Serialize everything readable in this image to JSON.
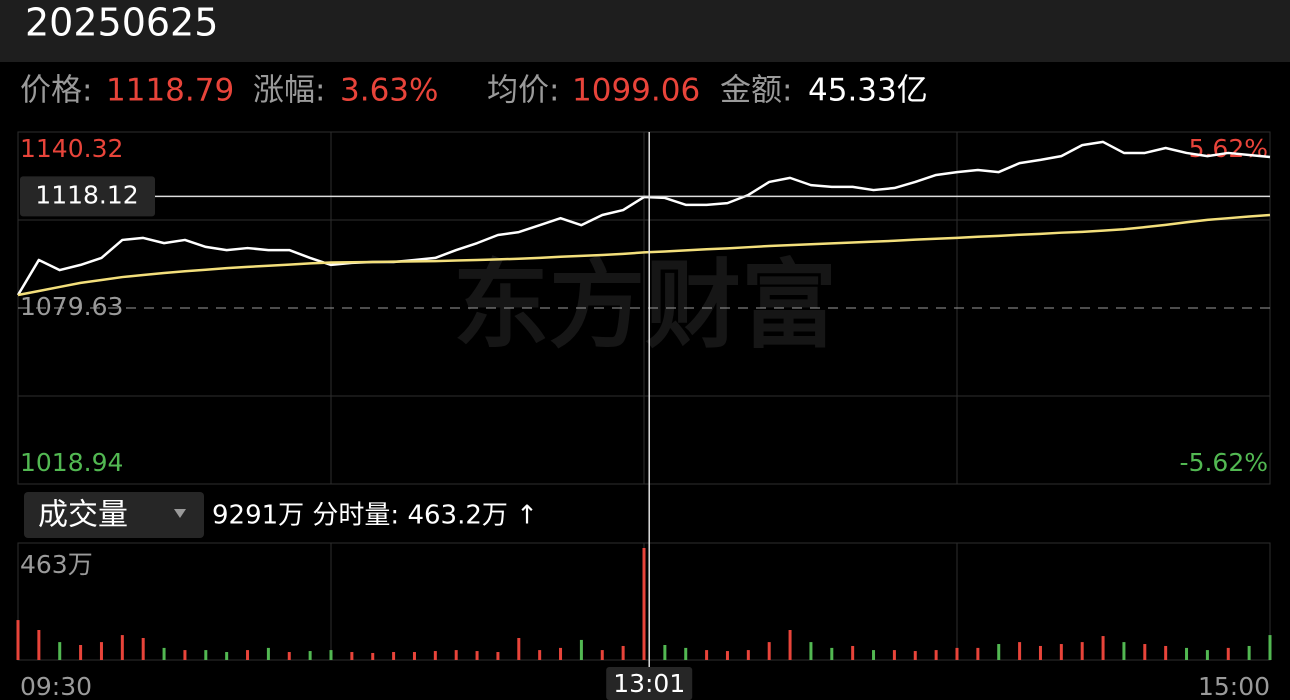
{
  "chart_data": {
    "type": "line",
    "title": "20250625",
    "info": [
      {
        "label": "价格:",
        "value": "1118.79"
      },
      {
        "label": "涨幅:",
        "value": "3.63%"
      },
      {
        "label": "均价:",
        "value": "1099.06"
      },
      {
        "label": "金额:",
        "value": "45.33亿"
      }
    ],
    "watermark": "东方财富",
    "x": [
      0,
      4,
      8,
      12,
      16,
      20,
      24,
      28,
      32,
      36,
      40,
      44,
      48,
      52,
      56,
      60,
      64,
      68,
      72,
      76,
      80,
      84,
      88,
      92,
      96,
      100,
      104,
      108,
      112,
      116,
      120,
      124,
      128,
      132,
      136,
      140,
      144,
      148,
      152,
      156,
      160,
      164,
      168,
      172,
      176,
      180,
      184,
      188,
      192,
      196,
      200,
      204,
      208,
      212,
      216,
      220,
      224,
      228,
      232,
      236,
      240
    ],
    "xlim": [
      0,
      240
    ],
    "xticks": [
      {
        "value": 0,
        "label": "09:30"
      },
      {
        "value": 240,
        "label": "15:00"
      }
    ],
    "xgrid": [
      60,
      120,
      180
    ],
    "ylim": [
      1018.94,
      1140.32
    ],
    "yticks": [
      1018.94,
      1079.63,
      1140.32
    ],
    "ygrid": [
      1049.28,
      1109.97
    ],
    "baseline": 1079.63,
    "y2lim": [
      -5.62,
      5.62
    ],
    "y2ticks": [
      {
        "value": -5.62,
        "label": "-5.62%"
      },
      {
        "value": 5.62,
        "label": "5.62%"
      }
    ],
    "series": [
      {
        "color": "#ffffff",
        "values": [
          1084.1,
          1096.2,
          1092.7,
          1094.5,
          1096.9,
          1103.1,
          1103.8,
          1102.0,
          1103.1,
          1100.7,
          1099.6,
          1100.3,
          1099.6,
          1099.6,
          1096.9,
          1094.5,
          1095.2,
          1095.5,
          1095.5,
          1096.2,
          1096.9,
          1099.6,
          1102.0,
          1104.8,
          1105.8,
          1108.2,
          1110.6,
          1108.2,
          1111.7,
          1113.4,
          1117.9,
          1117.6,
          1115.2,
          1115.2,
          1115.8,
          1118.6,
          1123.1,
          1124.5,
          1122.0,
          1121.4,
          1121.4,
          1120.3,
          1121.0,
          1123.1,
          1125.5,
          1126.5,
          1127.2,
          1126.5,
          1129.6,
          1130.7,
          1132.0,
          1135.8,
          1136.9,
          1133.1,
          1133.1,
          1134.8,
          1133.1,
          1132.0,
          1133.1,
          1132.4,
          1131.7
        ]
      },
      {
        "color": "#f3df7b",
        "values": [
          1084.1,
          1085.5,
          1086.9,
          1088.3,
          1089.3,
          1090.3,
          1091.0,
          1091.7,
          1092.3,
          1092.8,
          1093.4,
          1093.8,
          1094.2,
          1094.6,
          1095.0,
          1095.3,
          1095.4,
          1095.5,
          1095.6,
          1095.7,
          1095.8,
          1096.0,
          1096.2,
          1096.4,
          1096.6,
          1096.9,
          1097.3,
          1097.6,
          1097.9,
          1098.3,
          1098.8,
          1099.1,
          1099.5,
          1099.9,
          1100.2,
          1100.6,
          1101.0,
          1101.3,
          1101.6,
          1101.9,
          1102.2,
          1102.5,
          1102.8,
          1103.2,
          1103.5,
          1103.8,
          1104.2,
          1104.5,
          1104.9,
          1105.2,
          1105.6,
          1105.9,
          1106.3,
          1106.8,
          1107.5,
          1108.3,
          1109.2,
          1110.0,
          1110.6,
          1111.2,
          1111.7
        ]
      }
    ],
    "crosshair": {
      "x": 121,
      "x_label": "13:01",
      "y": 1118.12
    },
    "volume": {
      "title": "成交量",
      "summary": "9291万 分时量: 463.2万 ↑",
      "ylim": [
        0,
        463
      ],
      "yticks": [
        {
          "value": 463,
          "label": "463万"
        }
      ],
      "up_color": "#e8443a",
      "down_color": "#52b852",
      "values": [
        165,
        124,
        74,
        62,
        74,
        103,
        91,
        50,
        41,
        41,
        33,
        41,
        50,
        33,
        37,
        41,
        33,
        29,
        33,
        33,
        37,
        41,
        37,
        33,
        91,
        41,
        50,
        83,
        41,
        58,
        463,
        62,
        50,
        41,
        37,
        41,
        74,
        124,
        74,
        50,
        58,
        41,
        41,
        37,
        41,
        50,
        50,
        66,
        74,
        58,
        66,
        74,
        99,
        74,
        66,
        58,
        50,
        41,
        50,
        58,
        103
      ]
    }
  }
}
